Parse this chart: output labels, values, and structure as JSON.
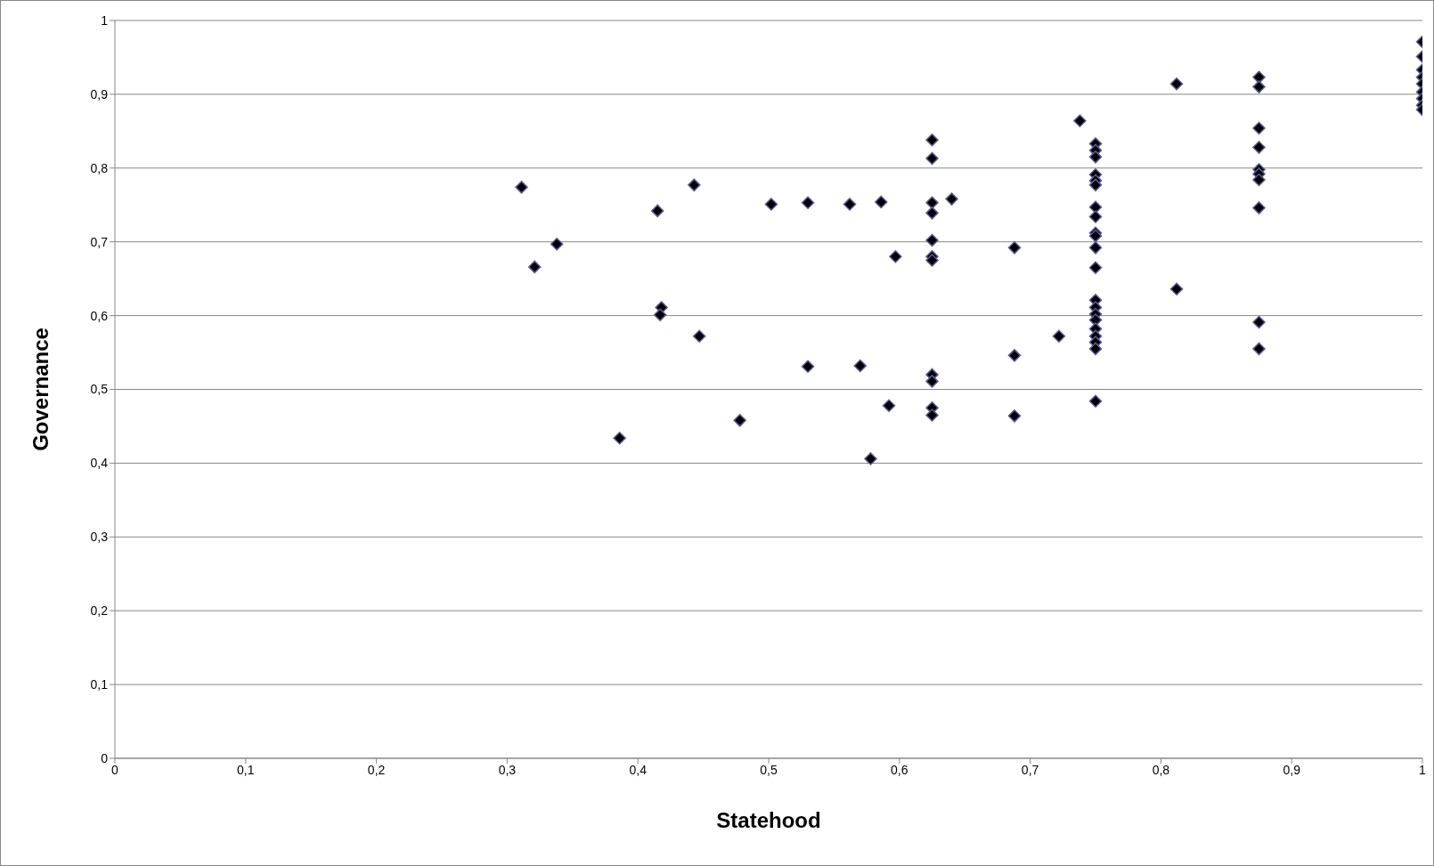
{
  "chart_data": {
    "type": "scatter",
    "xlabel": "Statehood",
    "ylabel": "Governance",
    "marker": "diamond",
    "grid": "y",
    "xlim": [
      0,
      1
    ],
    "ylim": [
      0,
      1
    ],
    "xticks": [
      0,
      {
        "value": 0.1,
        "label": "0,1"
      },
      {
        "value": 0.2,
        "label": "0,2"
      },
      {
        "value": 0.3,
        "label": "0,3"
      },
      {
        "value": 0.4,
        "label": "0,4"
      },
      {
        "value": 0.5,
        "label": "0,5"
      },
      {
        "value": 0.6,
        "label": "0,6"
      },
      {
        "value": 0.7,
        "label": "0,7"
      },
      {
        "value": 0.8,
        "label": "0,8"
      },
      {
        "value": 0.9,
        "label": "0,9"
      },
      1
    ],
    "yticks": [
      0,
      {
        "value": 0.1,
        "label": "0,1"
      },
      {
        "value": 0.2,
        "label": "0,2"
      },
      {
        "value": 0.3,
        "label": "0,3"
      },
      {
        "value": 0.4,
        "label": "0,4"
      },
      {
        "value": 0.5,
        "label": "0,5"
      },
      {
        "value": 0.6,
        "label": "0,6"
      },
      {
        "value": 0.7,
        "label": "0,7"
      },
      {
        "value": 0.8,
        "label": "0,8"
      },
      {
        "value": 0.9,
        "label": "0,9"
      },
      1
    ],
    "series": [
      {
        "color": "#000000",
        "x": [
          0.311,
          0.321,
          0.338,
          0.386,
          0.415,
          0.418,
          0.417,
          0.443,
          0.447,
          0.478,
          0.502,
          0.53,
          0.53,
          0.562,
          0.57,
          0.578,
          0.586,
          0.592,
          0.597,
          0.625,
          0.625,
          0.625,
          0.625,
          0.625,
          0.625,
          0.625,
          0.625,
          0.625,
          0.625,
          0.625,
          0.64,
          0.688,
          0.688,
          0.688,
          0.722,
          0.738,
          0.75,
          0.75,
          0.75,
          0.75,
          0.75,
          0.75,
          0.75,
          0.75,
          0.75,
          0.75,
          0.75,
          0.75,
          0.75,
          0.75,
          0.75,
          0.75,
          0.75,
          0.75,
          0.75,
          0.75,
          0.75,
          0.812,
          0.812,
          0.875,
          0.875,
          0.875,
          0.875,
          0.875,
          0.875,
          0.875,
          0.875,
          0.875,
          0.875,
          1,
          1,
          1,
          1,
          1,
          1,
          1,
          1,
          1
        ],
        "values": [
          0.774,
          0.666,
          0.697,
          0.434,
          0.742,
          0.611,
          0.601,
          0.777,
          0.572,
          0.458,
          0.751,
          0.753,
          0.531,
          0.751,
          0.532,
          0.406,
          0.754,
          0.478,
          0.68,
          0.838,
          0.813,
          0.753,
          0.739,
          0.702,
          0.68,
          0.675,
          0.52,
          0.511,
          0.475,
          0.465,
          0.758,
          0.692,
          0.546,
          0.464,
          0.572,
          0.864,
          0.833,
          0.824,
          0.815,
          0.791,
          0.783,
          0.777,
          0.747,
          0.734,
          0.712,
          0.708,
          0.692,
          0.665,
          0.621,
          0.611,
          0.602,
          0.594,
          0.582,
          0.572,
          0.564,
          0.555,
          0.484,
          0.914,
          0.636,
          0.923,
          0.91,
          0.854,
          0.828,
          0.798,
          0.792,
          0.784,
          0.746,
          0.591,
          0.555,
          0.971,
          0.951,
          0.933,
          0.923,
          0.914,
          0.903,
          0.894,
          0.885,
          0.879
        ]
      }
    ]
  }
}
